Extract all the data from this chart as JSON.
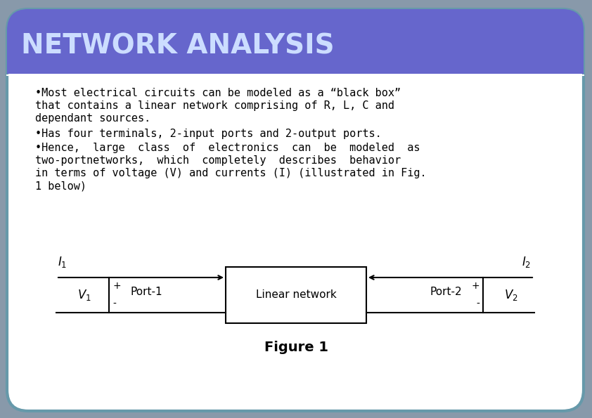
{
  "title": "NETWORK ANALYSIS",
  "title_color": "#CCDDFF",
  "title_bg_color": "#6666CC",
  "title_bg_color2": "#7777BB",
  "slide_bg_color": "#8899AA",
  "inner_bg_color": "#FFFFFF",
  "bullet1": "•Most electrical circuits can be modeled as a “black box” that contains a linear network comprising of R, L, C and dependant sources.",
  "bullet2": "•Has four terminals, 2-input ports and 2-output ports.",
  "bullet3": "•Hence, large class of electronics can be modeled as two-portnetworks, which completely describes behavior in terms of voltage (V) and currents (I) (illustrated in Fig. 1 below)",
  "figure_caption": "Figure 1",
  "outer_border_color": "#778899",
  "inner_border_color": "#888888"
}
